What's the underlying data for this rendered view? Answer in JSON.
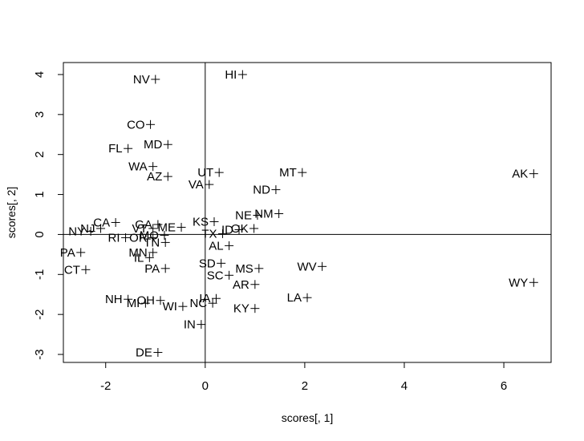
{
  "chart_data": {
    "type": "scatter",
    "xlabel": "scores[, 1]",
    "ylabel": "scores[, 2]",
    "xlim": [
      -2.85,
      6.95
    ],
    "ylim": [
      -3.2,
      4.3
    ],
    "x_ticks": [
      -2,
      0,
      2,
      4,
      6
    ],
    "y_ticks": [
      -3,
      -2,
      -1,
      0,
      1,
      2,
      3,
      4
    ],
    "reference_lines": {
      "x": 0,
      "y": 0
    },
    "grid": false,
    "marker": "+",
    "points": [
      {
        "label": "HI",
        "x": 0.75,
        "y": 4.0
      },
      {
        "label": "NV",
        "x": -1.0,
        "y": 3.88
      },
      {
        "label": "CO",
        "x": -1.1,
        "y": 2.75
      },
      {
        "label": "MD",
        "x": -0.75,
        "y": 2.25
      },
      {
        "label": "FL",
        "x": -1.55,
        "y": 2.15
      },
      {
        "label": "WA",
        "x": -1.05,
        "y": 1.7
      },
      {
        "label": "AZ",
        "x": -0.75,
        "y": 1.45
      },
      {
        "label": "UT",
        "x": 0.28,
        "y": 1.55
      },
      {
        "label": "VA",
        "x": 0.08,
        "y": 1.25
      },
      {
        "label": "MT",
        "x": 1.95,
        "y": 1.55
      },
      {
        "label": "ND",
        "x": 1.42,
        "y": 1.12
      },
      {
        "label": "AK",
        "x": 6.6,
        "y": 1.52
      },
      {
        "label": "NM",
        "x": 1.48,
        "y": 0.52
      },
      {
        "label": "NE",
        "x": 1.05,
        "y": 0.48
      },
      {
        "label": "KS",
        "x": 0.18,
        "y": 0.32
      },
      {
        "label": "OK",
        "x": 0.98,
        "y": 0.15
      },
      {
        "label": "ID",
        "x": 0.68,
        "y": 0.12
      },
      {
        "label": "TX",
        "x": 0.35,
        "y": 0.02
      },
      {
        "label": "CA",
        "x": -1.8,
        "y": 0.3
      },
      {
        "label": "GA",
        "x": -0.95,
        "y": 0.25
      },
      {
        "label": "VT",
        "x": -1.05,
        "y": 0.15
      },
      {
        "label": "ME",
        "x": -0.48,
        "y": 0.18
      },
      {
        "label": "MO",
        "x": -0.82,
        "y": -0.02
      },
      {
        "label": "OR",
        "x": -1.05,
        "y": -0.08
      },
      {
        "label": "TN",
        "x": -0.8,
        "y": -0.2
      },
      {
        "label": "NJ",
        "x": -2.1,
        "y": 0.15
      },
      {
        "label": "NY",
        "x": -2.3,
        "y": 0.08
      },
      {
        "label": "RI",
        "x": -1.6,
        "y": -0.08
      },
      {
        "label": "AL",
        "x": 0.48,
        "y": -0.28
      },
      {
        "label": "PA",
        "x": -2.5,
        "y": -0.45
      },
      {
        "label": "MN",
        "x": -1.05,
        "y": -0.45
      },
      {
        "label": "IL",
        "x": -1.12,
        "y": -0.58
      },
      {
        "label": "PA",
        "x": -0.8,
        "y": -0.85
      },
      {
        "label": "CT",
        "x": -2.4,
        "y": -0.88
      },
      {
        "label": "SD",
        "x": 0.32,
        "y": -0.72
      },
      {
        "label": "SC",
        "x": 0.48,
        "y": -1.02
      },
      {
        "label": "MS",
        "x": 1.08,
        "y": -0.85
      },
      {
        "label": "AR",
        "x": 1.0,
        "y": -1.25
      },
      {
        "label": "WV",
        "x": 2.35,
        "y": -0.8
      },
      {
        "label": "WY",
        "x": 6.6,
        "y": -1.2
      },
      {
        "label": "LA",
        "x": 2.05,
        "y": -1.58
      },
      {
        "label": "KY",
        "x": 1.0,
        "y": -1.85
      },
      {
        "label": "NH",
        "x": -1.55,
        "y": -1.62
      },
      {
        "label": "OH",
        "x": -0.9,
        "y": -1.65
      },
      {
        "label": "MI",
        "x": -1.2,
        "y": -1.72
      },
      {
        "label": "WI",
        "x": -0.45,
        "y": -1.8
      },
      {
        "label": "IA",
        "x": 0.22,
        "y": -1.6
      },
      {
        "label": "NC",
        "x": 0.15,
        "y": -1.72
      },
      {
        "label": "IN",
        "x": -0.08,
        "y": -2.25
      },
      {
        "label": "DE",
        "x": -0.95,
        "y": -2.95
      }
    ]
  }
}
